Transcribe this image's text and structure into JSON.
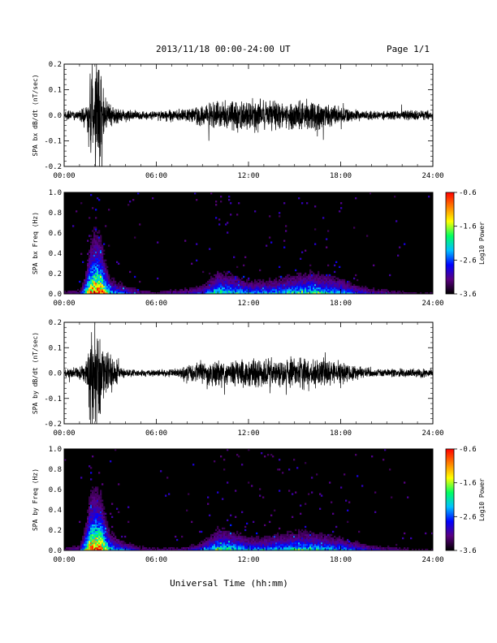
{
  "header": {
    "title": "2013/11/18  00:00-24:00 UT",
    "page": "Page 1/1"
  },
  "xlabel": "Universal Time (hh:mm)",
  "chart_data": [
    {
      "type": "line",
      "ylabel": "SPA bx dB/dt (nT/sec)",
      "xlim": [
        0,
        24
      ],
      "ylim": [
        -0.2,
        0.2
      ],
      "xticks": [
        "00:00",
        "06:00",
        "12:00",
        "18:00",
        "24:00"
      ],
      "yticks": [
        "-0.2",
        "-0.1",
        "0.0",
        "0.1",
        "0.2"
      ],
      "envelope": {
        "hours": [
          0,
          1,
          1.5,
          1.7,
          2.0,
          2.4,
          2.6,
          3.0,
          3.3,
          3.6,
          4.0,
          5.0,
          6.0,
          7.0,
          8.0,
          9.0,
          10.0,
          11.0,
          12.0,
          13.0,
          14.0,
          15.0,
          16.0,
          17.0,
          18.0,
          19.0,
          20.0,
          21.0,
          22.0,
          23.0,
          24.0
        ],
        "amplitude": [
          0.02,
          0.025,
          0.05,
          0.25,
          0.25,
          0.25,
          0.08,
          0.06,
          0.05,
          0.03,
          0.025,
          0.02,
          0.02,
          0.03,
          0.03,
          0.05,
          0.06,
          0.07,
          0.08,
          0.07,
          0.07,
          0.07,
          0.07,
          0.06,
          0.04,
          0.025,
          0.02,
          0.02,
          0.025,
          0.02,
          0.02
        ]
      }
    },
    {
      "type": "heatmap",
      "ylabel": "SPA bx Freq (Hz)",
      "xlim": [
        0,
        24
      ],
      "ylim": [
        0,
        1
      ],
      "xticks": [
        "00:00",
        "06:00",
        "12:00",
        "18:00",
        "24:00"
      ],
      "yticks": [
        "0.0",
        "0.2",
        "0.4",
        "0.6",
        "0.8",
        "1.0"
      ],
      "colorbar": {
        "label": "Log10 Power",
        "ticks": [
          "-0.6",
          "-1.6",
          "-2.6",
          "-3.6"
        ],
        "range": [
          -3.6,
          -0.6
        ]
      },
      "activity": {
        "hours": [
          0,
          1,
          1.7,
          2.0,
          2.4,
          3.0,
          4.0,
          5.0,
          6.0,
          8.0,
          9.0,
          10.0,
          11.0,
          12.0,
          13.0,
          14.0,
          15.0,
          16.0,
          17.0,
          18.0,
          19.0,
          20.0,
          21.0,
          22.0,
          23.0,
          24.0
        ],
        "level": [
          0.15,
          0.2,
          0.9,
          1.0,
          0.95,
          0.5,
          0.35,
          0.2,
          0.15,
          0.25,
          0.35,
          0.6,
          0.55,
          0.45,
          0.45,
          0.5,
          0.55,
          0.6,
          0.55,
          0.5,
          0.35,
          0.25,
          0.2,
          0.15,
          0.1,
          0.1
        ]
      }
    },
    {
      "type": "line",
      "ylabel": "SPA by dB/dt (nT/sec)",
      "xlim": [
        0,
        24
      ],
      "ylim": [
        -0.2,
        0.2
      ],
      "xticks": [
        "00:00",
        "06:00",
        "12:00",
        "18:00",
        "24:00"
      ],
      "yticks": [
        "-0.2",
        "-0.1",
        "0.0",
        "0.1",
        "0.2"
      ],
      "envelope": {
        "hours": [
          0,
          1,
          1.5,
          1.7,
          2.0,
          2.4,
          2.6,
          3.0,
          3.3,
          3.6,
          4.0,
          5.0,
          6.0,
          7.0,
          8.0,
          9.0,
          10.0,
          11.0,
          12.0,
          13.0,
          14.0,
          15.0,
          16.0,
          17.0,
          18.0,
          19.0,
          20.0,
          21.0,
          22.0,
          23.0,
          24.0
        ],
        "amplitude": [
          0.02,
          0.03,
          0.06,
          0.25,
          0.25,
          0.25,
          0.1,
          0.09,
          0.08,
          0.03,
          0.02,
          0.015,
          0.015,
          0.02,
          0.03,
          0.05,
          0.06,
          0.06,
          0.07,
          0.07,
          0.06,
          0.07,
          0.07,
          0.06,
          0.05,
          0.03,
          0.02,
          0.02,
          0.02,
          0.02,
          0.02
        ]
      }
    },
    {
      "type": "heatmap",
      "ylabel": "SPA by Freq (Hz)",
      "xlim": [
        0,
        24
      ],
      "ylim": [
        0,
        1
      ],
      "xticks": [
        "00:00",
        "06:00",
        "12:00",
        "18:00",
        "24:00"
      ],
      "yticks": [
        "0.0",
        "0.2",
        "0.4",
        "0.6",
        "0.8",
        "1.0"
      ],
      "colorbar": {
        "label": "Log10 Power",
        "ticks": [
          "-0.6",
          "-1.6",
          "-2.6",
          "-3.6"
        ],
        "range": [
          -3.6,
          -0.6
        ]
      },
      "activity": {
        "hours": [
          0,
          1,
          1.7,
          2.0,
          2.4,
          3.0,
          4.0,
          5.0,
          6.0,
          8.0,
          9.0,
          10.0,
          11.0,
          12.0,
          13.0,
          14.0,
          15.0,
          16.0,
          17.0,
          18.0,
          19.0,
          20.0,
          21.0,
          22.0,
          23.0,
          24.0
        ],
        "level": [
          0.15,
          0.25,
          0.95,
          1.0,
          0.95,
          0.55,
          0.35,
          0.2,
          0.15,
          0.2,
          0.35,
          0.6,
          0.55,
          0.45,
          0.45,
          0.5,
          0.55,
          0.55,
          0.5,
          0.45,
          0.35,
          0.25,
          0.2,
          0.15,
          0.1,
          0.1
        ]
      }
    }
  ],
  "colors": {
    "trace": "#000000",
    "spectrogram_background": "#000000",
    "colormap": [
      "#000000",
      "#5a0080",
      "#0000ff",
      "#00c0ff",
      "#00ff60",
      "#ffff00",
      "#ff8000",
      "#ff0000"
    ]
  }
}
